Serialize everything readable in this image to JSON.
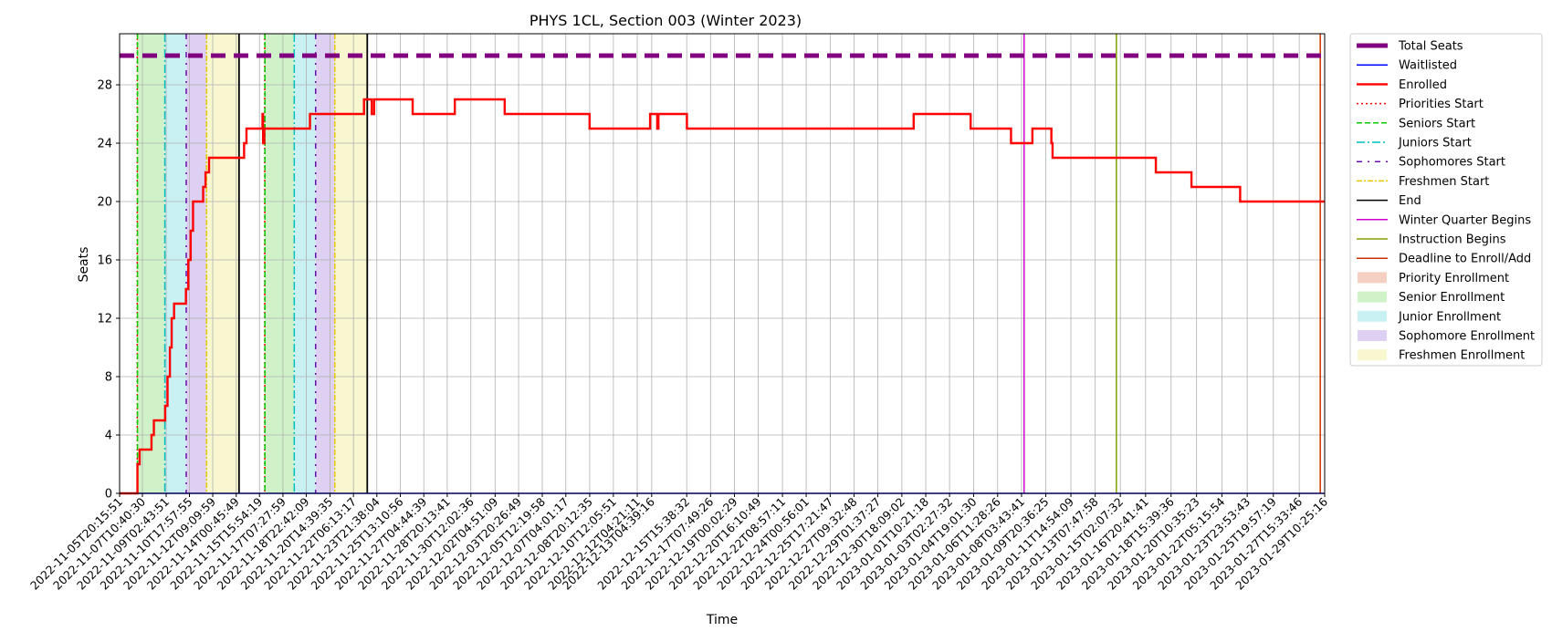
{
  "chart_data": {
    "type": "line",
    "title": "PHYS 1CL, Section 003 (Winter 2023)",
    "xlabel": "Time",
    "ylabel": "Seats",
    "xlim": [
      "2022-11-05T20:15:51",
      "2023-01-29T10:25:16"
    ],
    "ylim": [
      0,
      31.5
    ],
    "yticks": [
      0,
      4,
      8,
      12,
      16,
      20,
      24,
      28
    ],
    "grid": true,
    "legend_position": "outside-right",
    "xticks": [
      "2022-11-05T20:15:51",
      "2022-11-07T10:40:30",
      "2022-11-09T02:43:51",
      "2022-11-10T17:57:55",
      "2022-11-12T09:09:59",
      "2022-11-14T00:45:49",
      "2022-11-15T15:54:19",
      "2022-11-17T07:27:59",
      "2022-11-18T22:42:09",
      "2022-11-20T14:39:35",
      "2022-11-22T06:13:17",
      "2022-11-23T21:38:04",
      "2022-11-25T13:10:56",
      "2022-11-27T04:44:39",
      "2022-11-28T20:13:41",
      "2022-11-30T12:02:36",
      "2022-12-02T04:51:09",
      "2022-12-03T20:26:49",
      "2022-12-05T12:19:58",
      "2022-12-07T04:01:17",
      "2022-12-08T20:12:35",
      "2022-12-10T12:05:51",
      "2022-12-12T04:21:11",
      "2022-12-13T04:39:16",
      "2022-12-15T15:38:32",
      "2022-12-17T07:49:26",
      "2022-12-19T00:02:29",
      "2022-12-20T16:10:49",
      "2022-12-22T08:57:11",
      "2022-12-24T00:56:01",
      "2022-12-25T17:21:47",
      "2022-12-27T09:32:48",
      "2022-12-29T01:37:27",
      "2022-12-30T18:09:02",
      "2023-01-01T10:21:18",
      "2023-01-03T02:27:32",
      "2023-01-04T19:01:30",
      "2023-01-06T11:28:26",
      "2023-01-08T03:43:41",
      "2023-01-09T20:36:25",
      "2023-01-11T14:54:09",
      "2023-01-13T07:47:58",
      "2023-01-15T02:07:32",
      "2023-01-16T20:41:41",
      "2023-01-18T15:39:36",
      "2023-01-20T10:35:23",
      "2023-01-22T05:15:54",
      "2023-01-23T23:53:43",
      "2023-01-25T19:57:19",
      "2023-01-27T15:33:46",
      "2023-01-29T10:25:16"
    ],
    "total_seats": 30,
    "enrolled": [
      {
        "t": "2022-11-05T20:15:51",
        "v": 0
      },
      {
        "t": "2022-11-07T02:00:00",
        "v": 0
      },
      {
        "t": "2022-11-07T02:20:00",
        "v": 2
      },
      {
        "t": "2022-11-07T06:00:00",
        "v": 3
      },
      {
        "t": "2022-11-08T00:00:00",
        "v": 3
      },
      {
        "t": "2022-11-08T02:00:00",
        "v": 4
      },
      {
        "t": "2022-11-08T06:00:00",
        "v": 5
      },
      {
        "t": "2022-11-09T01:00:00",
        "v": 6
      },
      {
        "t": "2022-11-09T05:00:00",
        "v": 8
      },
      {
        "t": "2022-11-09T09:00:00",
        "v": 10
      },
      {
        "t": "2022-11-09T12:00:00",
        "v": 12
      },
      {
        "t": "2022-11-09T16:00:00",
        "v": 13
      },
      {
        "t": "2022-11-10T12:00:00",
        "v": 14
      },
      {
        "t": "2022-11-10T16:00:00",
        "v": 16
      },
      {
        "t": "2022-11-10T20:00:00",
        "v": 18
      },
      {
        "t": "2022-11-11T00:00:00",
        "v": 20
      },
      {
        "t": "2022-11-11T17:00:00",
        "v": 21
      },
      {
        "t": "2022-11-11T21:00:00",
        "v": 22
      },
      {
        "t": "2022-11-12T03:00:00",
        "v": 23
      },
      {
        "t": "2022-11-14T10:00:00",
        "v": 23
      },
      {
        "t": "2022-11-14T14:00:00",
        "v": 24
      },
      {
        "t": "2022-11-14T18:00:00",
        "v": 25
      },
      {
        "t": "2022-11-15T20:00:00",
        "v": 25
      },
      {
        "t": "2022-11-15T21:00:00",
        "v": 26
      },
      {
        "t": "2022-11-15T22:00:00",
        "v": 24
      },
      {
        "t": "2022-11-16T00:00:00",
        "v": 25
      },
      {
        "t": "2022-11-19T03:00:00",
        "v": 25
      },
      {
        "t": "2022-11-19T05:00:00",
        "v": 26
      },
      {
        "t": "2022-11-22T21:00:00",
        "v": 26
      },
      {
        "t": "2022-11-23T00:00:00",
        "v": 27
      },
      {
        "t": "2022-11-23T12:00:00",
        "v": 27
      },
      {
        "t": "2022-11-23T13:00:00",
        "v": 26
      },
      {
        "t": "2022-11-23T17:00:00",
        "v": 27
      },
      {
        "t": "2022-11-26T08:00:00",
        "v": 27
      },
      {
        "t": "2022-11-26T10:00:00",
        "v": 26
      },
      {
        "t": "2022-11-29T07:00:00",
        "v": 26
      },
      {
        "t": "2022-11-29T09:00:00",
        "v": 27
      },
      {
        "t": "2022-12-02T19:00:00",
        "v": 27
      },
      {
        "t": "2022-12-02T21:00:00",
        "v": 26
      },
      {
        "t": "2022-12-08T18:00:00",
        "v": 26
      },
      {
        "t": "2022-12-08T20:00:00",
        "v": 25
      },
      {
        "t": "2022-12-13T00:00:00",
        "v": 25
      },
      {
        "t": "2022-12-13T02:00:00",
        "v": 26
      },
      {
        "t": "2022-12-13T12:00:00",
        "v": 26
      },
      {
        "t": "2022-12-13T14:00:00",
        "v": 25
      },
      {
        "t": "2022-12-13T16:00:00",
        "v": 26
      },
      {
        "t": "2022-12-15T14:00:00",
        "v": 26
      },
      {
        "t": "2022-12-15T16:00:00",
        "v": 25
      },
      {
        "t": "2022-12-31T12:00:00",
        "v": 25
      },
      {
        "t": "2022-12-31T14:00:00",
        "v": 26
      },
      {
        "t": "2023-01-04T12:00:00",
        "v": 26
      },
      {
        "t": "2023-01-04T14:00:00",
        "v": 25
      },
      {
        "t": "2023-01-07T08:00:00",
        "v": 25
      },
      {
        "t": "2023-01-07T10:00:00",
        "v": 24
      },
      {
        "t": "2023-01-08T20:00:00",
        "v": 24
      },
      {
        "t": "2023-01-08T22:00:00",
        "v": 25
      },
      {
        "t": "2023-01-10T04:00:00",
        "v": 25
      },
      {
        "t": "2023-01-10T06:00:00",
        "v": 24
      },
      {
        "t": "2023-01-10T08:00:00",
        "v": 23
      },
      {
        "t": "2023-01-17T12:00:00",
        "v": 23
      },
      {
        "t": "2023-01-17T14:00:00",
        "v": 22
      },
      {
        "t": "2023-01-20T00:00:00",
        "v": 22
      },
      {
        "t": "2023-01-20T02:00:00",
        "v": 21
      },
      {
        "t": "2023-01-23T10:00:00",
        "v": 21
      },
      {
        "t": "2023-01-23T12:00:00",
        "v": 20
      },
      {
        "t": "2023-01-29T10:25:16",
        "v": 20
      }
    ],
    "waitlisted": [
      {
        "t": "2022-11-05T20:15:51",
        "v": 0
      },
      {
        "t": "2023-01-29T10:25:16",
        "v": 0
      }
    ],
    "markers": [
      {
        "kind": "priorities",
        "t": "2022-11-07T02:00:00"
      },
      {
        "kind": "seniors",
        "t": "2022-11-07T02:20:00"
      },
      {
        "kind": "juniors",
        "t": "2022-11-09T00:30:00"
      },
      {
        "kind": "sophomores",
        "t": "2022-11-10T12:30:00"
      },
      {
        "kind": "freshmen",
        "t": "2022-11-11T22:50:00"
      },
      {
        "kind": "end",
        "t": "2022-11-14T05:30:00"
      },
      {
        "kind": "priorities",
        "t": "2022-11-16T00:45:00"
      },
      {
        "kind": "seniors",
        "t": "2022-11-16T01:05:00"
      },
      {
        "kind": "juniors",
        "t": "2022-11-18T02:30:00"
      },
      {
        "kind": "sophomores",
        "t": "2022-11-19T14:30:00"
      },
      {
        "kind": "freshmen",
        "t": "2022-11-20T22:50:00"
      },
      {
        "kind": "end",
        "t": "2022-11-23T05:30:00"
      },
      {
        "kind": "quarter",
        "t": "2023-01-08T08:00:00"
      },
      {
        "kind": "instruction",
        "t": "2023-01-14T19:30:00"
      },
      {
        "kind": "deadline",
        "t": "2023-01-29T03:00:00"
      }
    ],
    "bands": [
      {
        "kind": "priority",
        "start": "2022-11-07T02:00:00",
        "end": "2022-11-07T02:20:00"
      },
      {
        "kind": "senior",
        "start": "2022-11-07T02:20:00",
        "end": "2022-11-09T00:30:00"
      },
      {
        "kind": "junior",
        "start": "2022-11-09T00:30:00",
        "end": "2022-11-10T12:30:00"
      },
      {
        "kind": "sophomore",
        "start": "2022-11-10T12:30:00",
        "end": "2022-11-11T22:50:00"
      },
      {
        "kind": "freshmen",
        "start": "2022-11-11T22:50:00",
        "end": "2022-11-14T05:30:00"
      },
      {
        "kind": "priority",
        "start": "2022-11-16T00:45:00",
        "end": "2022-11-16T01:05:00"
      },
      {
        "kind": "senior",
        "start": "2022-11-16T01:05:00",
        "end": "2022-11-18T02:30:00"
      },
      {
        "kind": "junior",
        "start": "2022-11-18T02:30:00",
        "end": "2022-11-19T14:30:00"
      },
      {
        "kind": "sophomore",
        "start": "2022-11-19T14:30:00",
        "end": "2022-11-20T22:50:00"
      },
      {
        "kind": "freshmen",
        "start": "2022-11-20T22:50:00",
        "end": "2022-11-23T05:30:00"
      }
    ],
    "legend": [
      {
        "key": "total",
        "label": "Total Seats"
      },
      {
        "key": "waitlisted",
        "label": "Waitlisted"
      },
      {
        "key": "enrolled",
        "label": "Enrolled"
      },
      {
        "key": "priorities",
        "label": "Priorities Start"
      },
      {
        "key": "seniors",
        "label": "Seniors Start"
      },
      {
        "key": "juniors",
        "label": "Juniors Start"
      },
      {
        "key": "sophomores",
        "label": "Sophomores Start"
      },
      {
        "key": "freshmen",
        "label": "Freshmen Start"
      },
      {
        "key": "end",
        "label": "End"
      },
      {
        "key": "quarter",
        "label": "Winter Quarter Begins"
      },
      {
        "key": "instruction",
        "label": "Instruction Begins"
      },
      {
        "key": "deadline",
        "label": "Deadline to Enroll/Add"
      },
      {
        "key": "band-priority",
        "label": "Priority Enrollment"
      },
      {
        "key": "band-senior",
        "label": "Senior Enrollment"
      },
      {
        "key": "band-junior",
        "label": "Junior Enrollment"
      },
      {
        "key": "band-sophomore",
        "label": "Sophomore Enrollment"
      },
      {
        "key": "band-freshmen",
        "label": "Freshmen Enrollment"
      }
    ],
    "colors": {
      "total": "#800080",
      "waitlisted": "#0000ff",
      "enrolled": "#ff0000",
      "priorities": "#ff0000",
      "seniors": "#00cc00",
      "juniors": "#00bfbf",
      "sophomores": "#6a0dad",
      "freshmen": "#e6c800",
      "end": "#000000",
      "quarter": "#d000d0",
      "instruction": "#80a000",
      "deadline": "#cc3300",
      "band-priority": "#f4c7b8",
      "band-senior": "#c8f0c0",
      "band-junior": "#bfeef2",
      "band-sophomore": "#d8c8f0",
      "band-freshmen": "#f8f6c8"
    }
  }
}
